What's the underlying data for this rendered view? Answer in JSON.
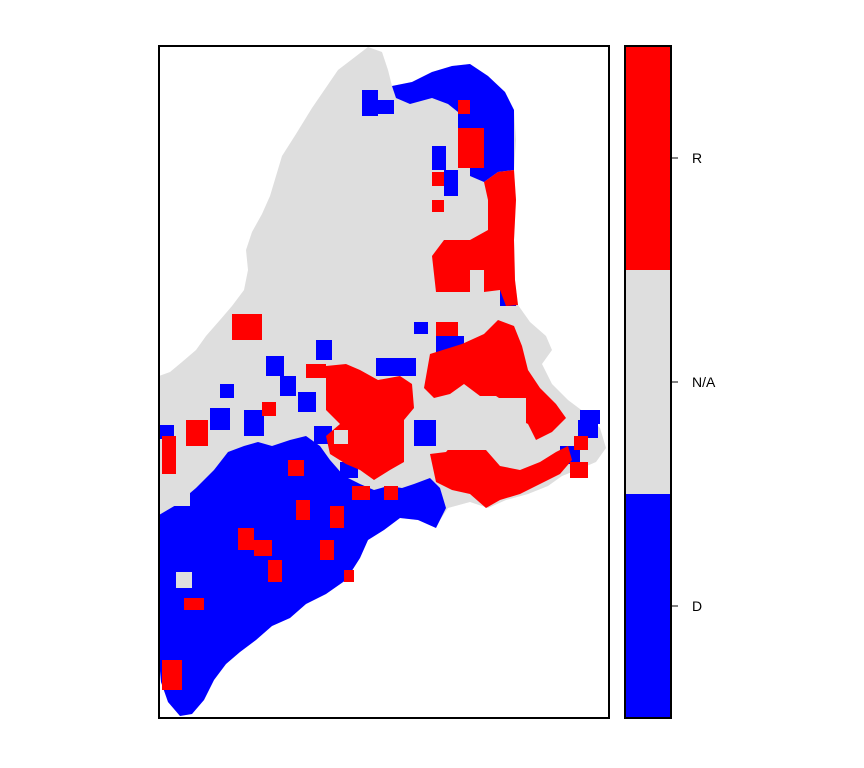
{
  "map": {
    "colors": {
      "R": "#ff0000",
      "D": "#0000ff",
      "N/A": "#dedede"
    }
  },
  "legend": {
    "entries": [
      {
        "key": "R",
        "label": "R",
        "color": "#ff0000"
      },
      {
        "key": "N/A",
        "label": "N/A",
        "color": "#dedede"
      },
      {
        "key": "D",
        "label": "D",
        "color": "#0000ff"
      }
    ]
  }
}
